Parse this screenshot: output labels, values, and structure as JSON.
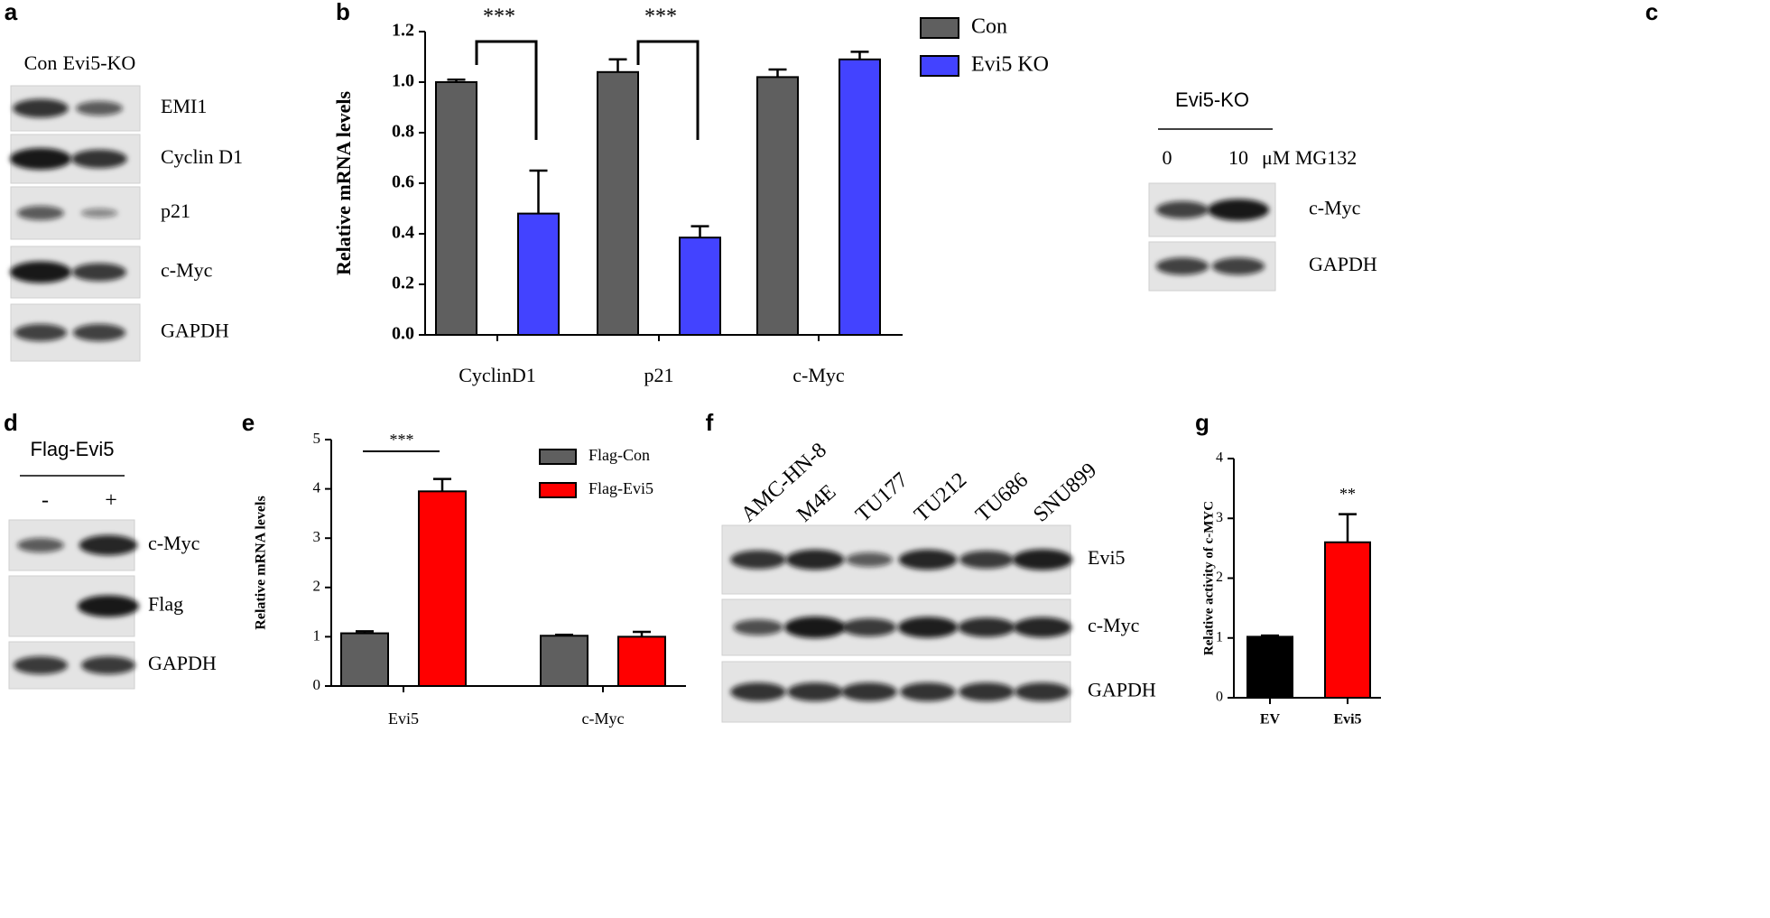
{
  "chart_data": [
    {
      "type": "bar",
      "panel": "b",
      "ylabel": "Relative mRNA  levels",
      "categories": [
        "CyclinD1",
        "p21",
        "c-Myc"
      ],
      "series": [
        {
          "name": "Con",
          "color": "#5f5f5f",
          "values": [
            1.0,
            1.04,
            1.02
          ],
          "errors": [
            0.01,
            0.05,
            0.03
          ]
        },
        {
          "name": "Evi5 KO",
          "color": "#4343ff",
          "values": [
            0.48,
            0.385,
            1.09
          ],
          "errors": [
            0.17,
            0.045,
            0.03
          ]
        }
      ],
      "significance": [
        "***",
        "***",
        null
      ],
      "ylim": [
        0,
        1.2
      ],
      "yticks": [
        {
          "value": 0,
          "label": "0.0"
        },
        {
          "value": 0.2,
          "label": "0.2"
        },
        {
          "value": 0.4,
          "label": "0.4"
        },
        {
          "value": 0.6,
          "label": "0.6"
        },
        {
          "value": 0.8,
          "label": "0.8"
        },
        {
          "value": 1.0,
          "label": "1.0"
        },
        {
          "value": 1.2,
          "label": "1.2"
        }
      ],
      "legend": "upper right",
      "grid": false
    },
    {
      "type": "bar",
      "panel": "e",
      "ylabel": "Relative mRNA  levels",
      "categories": [
        "Evi5",
        "c-Myc"
      ],
      "series": [
        {
          "name": "Flag-Con",
          "color": "#5f5f5f",
          "values": [
            1.07,
            1.02
          ],
          "errors": [
            0.04,
            0.02
          ]
        },
        {
          "name": "Flag-Evi5",
          "color": "#ff0000",
          "values": [
            3.95,
            1.0
          ],
          "errors": [
            0.25,
            0.1
          ]
        }
      ],
      "significance": [
        "***",
        null
      ],
      "ylim": [
        0,
        5
      ],
      "yticks": [
        0,
        1,
        2,
        3,
        4,
        5
      ],
      "legend": "upper right",
      "grid": false
    },
    {
      "type": "bar",
      "panel": "g",
      "ylabel": "Relative activity of c-MYC",
      "categories": [
        "EV",
        "Evi5"
      ],
      "values": [
        1.02,
        2.6
      ],
      "errors": [
        0.02,
        0.47
      ],
      "colors": [
        "#000000",
        "#ff0000"
      ],
      "significance": [
        null,
        "**"
      ],
      "ylim": [
        0,
        4
      ],
      "yticks": [
        0,
        1,
        2,
        3,
        4
      ],
      "grid": false
    }
  ],
  "blots": [
    {
      "panel": "a",
      "lanes": [
        "Con",
        "Evi5-KO"
      ],
      "bands": [
        "EMI1",
        "Cyclin D1",
        "p21",
        "c-Myc",
        "GAPDH"
      ]
    },
    {
      "panel": "c",
      "header": "Evi5-KO",
      "lanes": [
        "0",
        "10"
      ],
      "unit": "μM MG132",
      "bands": [
        "c-Myc",
        "GAPDH"
      ]
    },
    {
      "panel": "d",
      "header": "Flag-Evi5",
      "lanes": [
        "-",
        "+"
      ],
      "bands": [
        "c-Myc",
        "Flag",
        "GAPDH"
      ]
    },
    {
      "panel": "f",
      "lanes": [
        "AMC-HN-8",
        "M4E",
        "TU177",
        "TU212",
        "TU686",
        "SNU899"
      ],
      "bands": [
        "Evi5",
        "c-Myc",
        "GAPDH"
      ]
    }
  ]
}
